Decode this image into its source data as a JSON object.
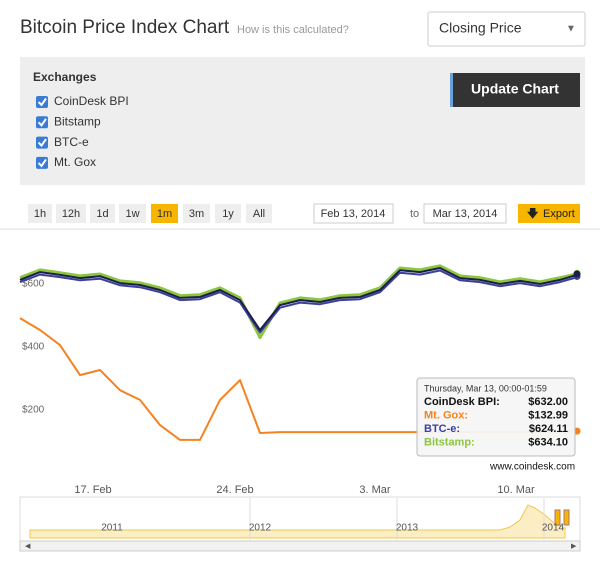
{
  "header": {
    "title": "Bitcoin Price Index Chart",
    "link": "How is this calculated?",
    "select": "Closing Price"
  },
  "exchanges": {
    "heading": "Exchanges",
    "items": [
      "CoinDesk BPI",
      "Bitstamp",
      "BTC-e",
      "Mt. Gox"
    ],
    "button": "Update Chart"
  },
  "range": {
    "buttons": [
      "1h",
      "12h",
      "1d",
      "1w",
      "1m",
      "3m",
      "1y",
      "All"
    ],
    "active": 4,
    "from": "Feb 13, 2014",
    "to_label": "to",
    "to": "Mar 13, 2014",
    "export": "Export"
  },
  "chart_data": {
    "type": "line",
    "series": [
      {
        "name": "Bitstamp",
        "color": "#8cc63f",
        "values": [
          620,
          645,
          636,
          626,
          632,
          610,
          604,
          588,
          563,
          566,
          588,
          556,
          430,
          540,
          556,
          550,
          563,
          566,
          588,
          651,
          645,
          658,
          626,
          620,
          607,
          617,
          607,
          620,
          634.1
        ]
      },
      {
        "name": "BTC-e",
        "color": "#3b3f9e",
        "values": [
          606,
          630,
          622,
          612,
          617,
          596,
          590,
          574,
          549,
          552,
          574,
          541,
          446,
          525,
          541,
          536,
          549,
          552,
          574,
          636,
          630,
          643,
          612,
          606,
          593,
          603,
          593,
          606,
          624.11
        ]
      },
      {
        "name": "CoinDesk BPI",
        "color": "#1c2046",
        "values": [
          613,
          638,
          629,
          619,
          625,
          603,
          597,
          581,
          556,
          559,
          581,
          549,
          454,
          533,
          549,
          543,
          556,
          559,
          581,
          644,
          638,
          651,
          619,
          613,
          600,
          610,
          600,
          613,
          632.0
        ]
      },
      {
        "name": "Mt. Gox",
        "color": "#f58220",
        "values": [
          492,
          454,
          406,
          311,
          327,
          263,
          232,
          152,
          105,
          105,
          232,
          295,
          127,
          130,
          130,
          130,
          130,
          130,
          130,
          130,
          130,
          130,
          130,
          130,
          130,
          130,
          130,
          130,
          132.99
        ]
      }
    ],
    "ylim": [
      0,
      770
    ],
    "yticks": [
      {
        "value": 200,
        "label": "$200"
      },
      {
        "value": 400,
        "label": "$400"
      },
      {
        "value": 600,
        "label": "$600"
      }
    ],
    "x_labels": [
      "17. Feb",
      "24. Feb",
      "3. Mar",
      "10. Mar"
    ],
    "tooltip": {
      "date": "Thursday, Mar 13, 00:00-01:59",
      "rows": [
        {
          "label": "CoinDesk BPI:",
          "value": "$632.00"
        },
        {
          "label": "Mt. Gox:",
          "value": "$132.99"
        },
        {
          "label": "BTC-e:",
          "value": "$624.11"
        },
        {
          "label": "Bitstamp:",
          "value": "$634.10"
        }
      ]
    },
    "credit": "www.coindesk.com",
    "navigator_labels": [
      "2011",
      "2012",
      "2013",
      "2014"
    ]
  }
}
